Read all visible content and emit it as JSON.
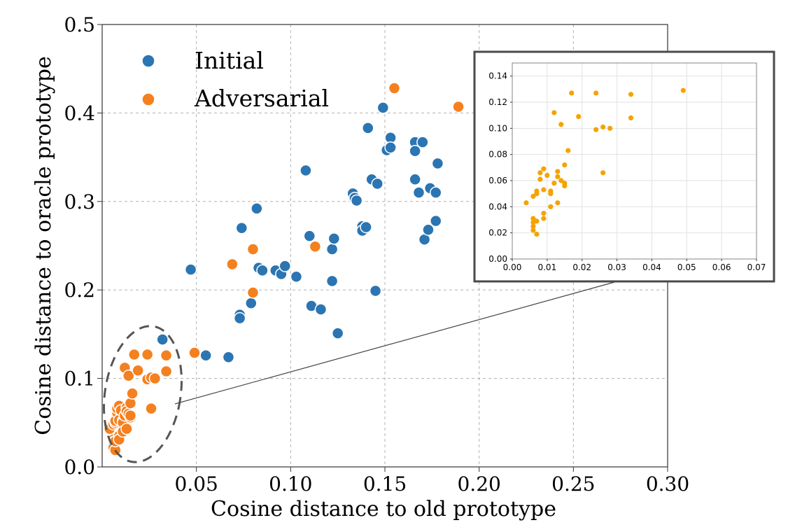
{
  "chart_data": [
    {
      "type": "scatter",
      "title": "",
      "xlabel": "Cosine distance to old prototype",
      "ylabel": "Cosine distance to oracle prototype",
      "xlim": [
        0.0,
        0.3
      ],
      "ylim": [
        0.0,
        0.5
      ],
      "xticks": [
        "0.05",
        "0.10",
        "0.15",
        "0.20",
        "0.25",
        "0.30"
      ],
      "xtick_values": [
        0.05,
        0.1,
        0.15,
        0.2,
        0.25,
        0.3
      ],
      "yticks": [
        "0.0",
        "0.1",
        "0.2",
        "0.3",
        "0.4",
        "0.5"
      ],
      "ytick_values": [
        0.0,
        0.1,
        0.2,
        0.3,
        0.4,
        0.5
      ],
      "grid": true,
      "legend_position": "top-left",
      "series": [
        {
          "name": "Initial",
          "color": "#2b75b2",
          "points": [
            [
              0.047,
              0.223
            ],
            [
              0.055,
              0.126
            ],
            [
              0.067,
              0.124
            ],
            [
              0.032,
              0.144
            ],
            [
              0.073,
              0.172
            ],
            [
              0.073,
              0.168
            ],
            [
              0.074,
              0.27
            ],
            [
              0.079,
              0.185
            ],
            [
              0.082,
              0.292
            ],
            [
              0.083,
              0.225
            ],
            [
              0.085,
              0.222
            ],
            [
              0.092,
              0.222
            ],
            [
              0.095,
              0.218
            ],
            [
              0.097,
              0.227
            ],
            [
              0.103,
              0.215
            ],
            [
              0.108,
              0.335
            ],
            [
              0.11,
              0.261
            ],
            [
              0.111,
              0.182
            ],
            [
              0.116,
              0.178
            ],
            [
              0.122,
              0.246
            ],
            [
              0.122,
              0.21
            ],
            [
              0.123,
              0.258
            ],
            [
              0.125,
              0.151
            ],
            [
              0.133,
              0.309
            ],
            [
              0.134,
              0.304
            ],
            [
              0.135,
              0.301
            ],
            [
              0.138,
              0.272
            ],
            [
              0.138,
              0.267
            ],
            [
              0.14,
              0.271
            ],
            [
              0.141,
              0.383
            ],
            [
              0.143,
              0.325
            ],
            [
              0.145,
              0.199
            ],
            [
              0.146,
              0.32
            ],
            [
              0.149,
              0.406
            ],
            [
              0.151,
              0.358
            ],
            [
              0.153,
              0.372
            ],
            [
              0.153,
              0.361
            ],
            [
              0.166,
              0.367
            ],
            [
              0.166,
              0.357
            ],
            [
              0.166,
              0.325
            ],
            [
              0.168,
              0.31
            ],
            [
              0.17,
              0.367
            ],
            [
              0.171,
              0.257
            ],
            [
              0.173,
              0.268
            ],
            [
              0.174,
              0.315
            ],
            [
              0.177,
              0.278
            ],
            [
              0.177,
              0.31
            ],
            [
              0.178,
              0.343
            ]
          ]
        },
        {
          "name": "Adversarial",
          "color": "#f5801f",
          "points": [
            [
              0.155,
              0.428
            ],
            [
              0.189,
              0.407
            ],
            [
              0.113,
              0.249
            ],
            [
              0.069,
              0.229
            ],
            [
              0.08,
              0.246
            ],
            [
              0.08,
              0.197
            ],
            [
              0.049,
              0.129
            ],
            [
              0.004,
              0.043
            ],
            [
              0.006,
              0.031
            ],
            [
              0.006,
              0.028
            ],
            [
              0.006,
              0.025
            ],
            [
              0.006,
              0.022
            ],
            [
              0.007,
              0.019
            ],
            [
              0.007,
              0.029
            ],
            [
              0.006,
              0.048
            ],
            [
              0.007,
              0.05
            ],
            [
              0.007,
              0.052
            ],
            [
              0.008,
              0.061
            ],
            [
              0.008,
              0.066
            ],
            [
              0.009,
              0.069
            ],
            [
              0.009,
              0.035
            ],
            [
              0.009,
              0.031
            ],
            [
              0.009,
              0.053
            ],
            [
              0.01,
              0.064
            ],
            [
              0.011,
              0.052
            ],
            [
              0.011,
              0.05
            ],
            [
              0.011,
              0.04
            ],
            [
              0.012,
              0.112
            ],
            [
              0.012,
              0.058
            ],
            [
              0.013,
              0.067
            ],
            [
              0.013,
              0.063
            ],
            [
              0.013,
              0.043
            ],
            [
              0.014,
              0.103
            ],
            [
              0.014,
              0.06
            ],
            [
              0.015,
              0.072
            ],
            [
              0.015,
              0.056
            ],
            [
              0.015,
              0.058
            ],
            [
              0.016,
              0.083
            ],
            [
              0.017,
              0.127
            ],
            [
              0.019,
              0.109
            ],
            [
              0.024,
              0.127
            ],
            [
              0.024,
              0.099
            ],
            [
              0.026,
              0.101
            ],
            [
              0.026,
              0.066
            ],
            [
              0.028,
              0.1
            ],
            [
              0.034,
              0.126
            ],
            [
              0.034,
              0.108
            ]
          ]
        }
      ]
    },
    {
      "type": "scatter",
      "title": "",
      "xlabel": "",
      "ylabel": "",
      "xlim": [
        0.0,
        0.07
      ],
      "ylim": [
        0.0,
        0.15
      ],
      "xticks": [
        "0.00",
        "0.01",
        "0.02",
        "0.03",
        "0.04",
        "0.05",
        "0.06",
        "0.07"
      ],
      "xtick_values": [
        0.0,
        0.01,
        0.02,
        0.03,
        0.04,
        0.05,
        0.06,
        0.07
      ],
      "yticks": [
        "0.00",
        "0.02",
        "0.04",
        "0.06",
        "0.08",
        "0.10",
        "0.12",
        "0.14"
      ],
      "ytick_values": [
        0.0,
        0.02,
        0.04,
        0.06,
        0.08,
        0.1,
        0.12,
        0.14
      ],
      "grid": true,
      "series": [
        {
          "color": "#f5a300",
          "points": [
            [
              0.004,
              0.043
            ],
            [
              0.006,
              0.031
            ],
            [
              0.006,
              0.028
            ],
            [
              0.006,
              0.025
            ],
            [
              0.006,
              0.022
            ],
            [
              0.007,
              0.019
            ],
            [
              0.007,
              0.029
            ],
            [
              0.006,
              0.048
            ],
            [
              0.007,
              0.05
            ],
            [
              0.007,
              0.052
            ],
            [
              0.008,
              0.061
            ],
            [
              0.008,
              0.066
            ],
            [
              0.009,
              0.069
            ],
            [
              0.009,
              0.035
            ],
            [
              0.009,
              0.031
            ],
            [
              0.009,
              0.053
            ],
            [
              0.01,
              0.064
            ],
            [
              0.011,
              0.052
            ],
            [
              0.011,
              0.05
            ],
            [
              0.011,
              0.04
            ],
            [
              0.012,
              0.112
            ],
            [
              0.012,
              0.058
            ],
            [
              0.013,
              0.067
            ],
            [
              0.013,
              0.063
            ],
            [
              0.013,
              0.043
            ],
            [
              0.014,
              0.103
            ],
            [
              0.014,
              0.06
            ],
            [
              0.015,
              0.072
            ],
            [
              0.015,
              0.056
            ],
            [
              0.015,
              0.058
            ],
            [
              0.016,
              0.083
            ],
            [
              0.017,
              0.127
            ],
            [
              0.019,
              0.109
            ],
            [
              0.024,
              0.127
            ],
            [
              0.024,
              0.099
            ],
            [
              0.026,
              0.101
            ],
            [
              0.026,
              0.066
            ],
            [
              0.028,
              0.1
            ],
            [
              0.034,
              0.126
            ],
            [
              0.034,
              0.108
            ],
            [
              0.049,
              0.129
            ]
          ]
        }
      ]
    }
  ]
}
